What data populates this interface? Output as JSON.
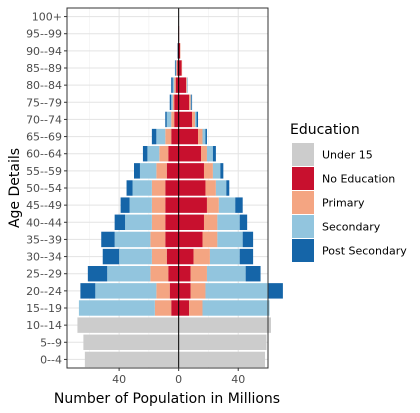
{
  "chart_data": {
    "type": "bar",
    "orientation": "horizontal",
    "layout": "population pyramid (stacked, left side negative)",
    "xlabel": "Number of Population in Millions",
    "ylabel": "Age Details",
    "xlim": [
      -75,
      60
    ],
    "x_ticks": [
      -40,
      0,
      40
    ],
    "x_tick_labels": [
      "40",
      "0",
      "40"
    ],
    "grid": true,
    "legend": {
      "title": "Education",
      "placement": "right",
      "items": [
        {
          "name": "Under 15",
          "color": "#cccccc"
        },
        {
          "name": "No Education",
          "color": "#c8102e"
        },
        {
          "name": "Primary",
          "color": "#f4a582"
        },
        {
          "name": "Secondary",
          "color": "#92c5de"
        },
        {
          "name": "Post Secondary",
          "color": "#1565a8"
        }
      ]
    },
    "categories": [
      "0--4",
      "5--9",
      "10--14",
      "15--19",
      "20--24",
      "25--29",
      "30--34",
      "35--39",
      "40--44",
      "45--49",
      "50--54",
      "55--59",
      "60--64",
      "65--69",
      "70--74",
      "75--79",
      "80--84",
      "85--89",
      "90--94",
      "95--99",
      "100+"
    ],
    "series_left": [
      {
        "name": "Under 15",
        "values": [
          63,
          64,
          68,
          0,
          0,
          0,
          0,
          0,
          0,
          0,
          0,
          0,
          0,
          0,
          0,
          0,
          0,
          0,
          0,
          0,
          0
        ]
      },
      {
        "name": "No Education",
        "values": [
          0,
          0,
          0,
          5,
          6,
          7,
          8,
          9,
          9,
          9,
          9,
          8,
          7,
          5,
          3,
          3,
          2,
          1,
          0.5,
          0.2,
          0.1
        ]
      },
      {
        "name": "Primary",
        "values": [
          0,
          0,
          0,
          11,
          9,
          12,
          10,
          10,
          9,
          9,
          9,
          7,
          6,
          4,
          2,
          1,
          1,
          0.5,
          0.2,
          0,
          0
        ]
      },
      {
        "name": "Secondary",
        "values": [
          0,
          0,
          0,
          51,
          41,
          29,
          22,
          24,
          18,
          15,
          13,
          11,
          8,
          6,
          3,
          1,
          1,
          0.5,
          0.2,
          0,
          0
        ]
      },
      {
        "name": "Post Secondary",
        "values": [
          0,
          0,
          0,
          0,
          10,
          13,
          11,
          9,
          7,
          6,
          4,
          4,
          3,
          3,
          1,
          1,
          1,
          0.5,
          0.2,
          0,
          0
        ]
      }
    ],
    "series_right": [
      {
        "name": "Under 15",
        "values": [
          58,
          59,
          62,
          0,
          0,
          0,
          0,
          0,
          0,
          0,
          0,
          0,
          0,
          0,
          0,
          0,
          0,
          0,
          0,
          0,
          0
        ]
      },
      {
        "name": "No Education",
        "values": [
          0,
          0,
          0,
          7,
          8,
          8,
          10,
          16,
          17,
          19,
          18,
          17,
          15,
          13,
          9,
          7,
          5,
          2,
          1,
          0.3,
          0.1
        ]
      },
      {
        "name": "Primary",
        "values": [
          0,
          0,
          0,
          9,
          10,
          11,
          11,
          10,
          9,
          8,
          7,
          6,
          4,
          3,
          2,
          1,
          0.5,
          0.3,
          0.2,
          0,
          0
        ]
      },
      {
        "name": "Secondary",
        "values": [
          0,
          0,
          0,
          45,
          42,
          26,
          20,
          17,
          15,
          11,
          7,
          5,
          4,
          2,
          1,
          0.5,
          0.2,
          0,
          0,
          0,
          0
        ]
      },
      {
        "name": "Post Secondary",
        "values": [
          0,
          0,
          0,
          0,
          10,
          10,
          9,
          7,
          5,
          5,
          2,
          2,
          2,
          1,
          1,
          0.5,
          0.2,
          0,
          0,
          0,
          0
        ]
      }
    ]
  }
}
